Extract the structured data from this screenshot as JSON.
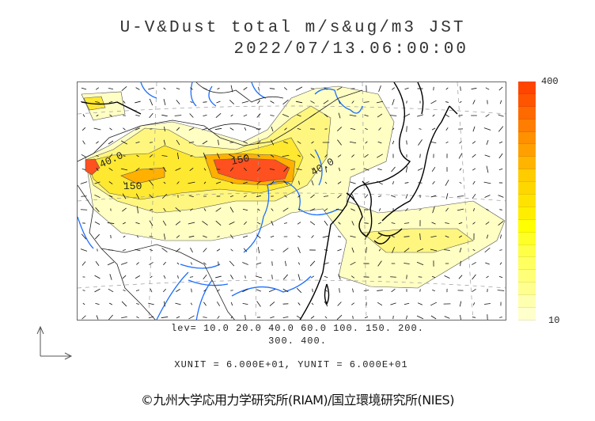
{
  "header": {
    "title": "U-V&Dust total m/s&ug/m3 JST",
    "datetime": "2022/07/13.06:00:00"
  },
  "colorbar": {
    "max_label": "400",
    "min_label": "10",
    "colors": [
      "#ff4500",
      "#ff5500",
      "#ff6a00",
      "#ff7d00",
      "#ff9000",
      "#ffa000",
      "#ffb400",
      "#ffcc00",
      "#ffd700",
      "#ffe300",
      "#ffee00",
      "#ffff00",
      "#ffff28",
      "#ffff48",
      "#ffff60",
      "#ffff78",
      "#ffff90",
      "#ffffb0",
      "#ffffcc"
    ]
  },
  "map": {
    "contour_labels": [
      "40.0",
      "150",
      "150",
      "40.0"
    ],
    "colors": {
      "river": "#1e6fff",
      "coast": "#000000",
      "border": "#222222",
      "light": "#ffffc4",
      "yellow": "#ffee40",
      "orange": "#ffb000",
      "red": "#ff5020"
    }
  },
  "legend": {
    "levels_line1": "lev= 10.0 20.0 40.0 60.0 100. 150. 200.",
    "levels_line2": "300. 400.",
    "units": "XUNIT = 6.000E+01, YUNIT = 6.000E+01"
  },
  "footer": {
    "copyright": "©九州大学応用力学研究所(RIAM)/国立環境研究所(NIES)"
  }
}
